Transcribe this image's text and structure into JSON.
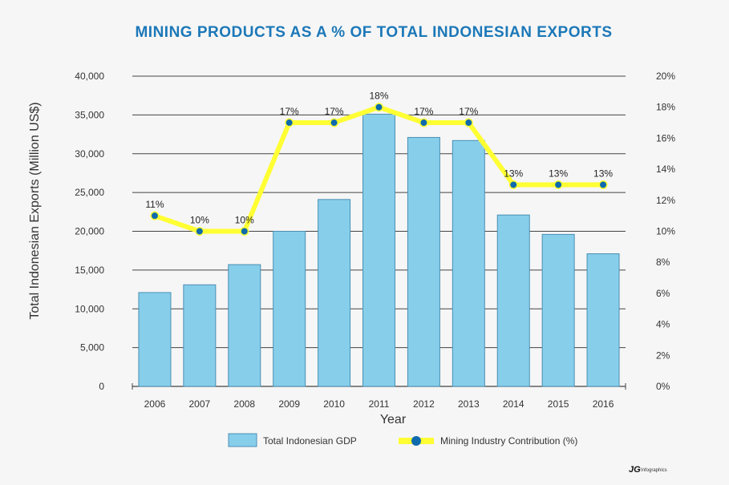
{
  "colors": {
    "title": "#1c78b8",
    "bar_fill": "#87ceeb",
    "bar_stroke": "#4a8fb3",
    "line": "#ffff33",
    "marker": "#0d6aad",
    "grid": "#444444",
    "background": "#f6f6f6"
  },
  "chart_data": {
    "type": "bar",
    "title": "MINING PRODUCTS AS A % OF TOTAL INDONESIAN EXPORTS",
    "xlabel": "Year",
    "ylabel": "Total Indonesian Exports (Million US$)",
    "categories": [
      "2006",
      "2007",
      "2008",
      "2009",
      "2010",
      "2011",
      "2012",
      "2013",
      "2014",
      "2015",
      "2016"
    ],
    "ylim": [
      0,
      40000
    ],
    "y_ticks": [
      "0",
      "5,000",
      "10,000",
      "15,000",
      "20,000",
      "25,000",
      "30,000",
      "35,000",
      "40,000"
    ],
    "y2lim": [
      0,
      20
    ],
    "y2_ticks": [
      "0%",
      "2%",
      "4%",
      "6%",
      "8%",
      "10%",
      "12%",
      "14%",
      "16%",
      "18%",
      "20%"
    ],
    "grid": "horizontal",
    "legend_position": "bottom",
    "series": [
      {
        "name": "Total Indonesian GDP",
        "type": "bar",
        "axis": "left",
        "values": [
          12100,
          13100,
          15700,
          20000,
          24100,
          35100,
          32100,
          31700,
          22100,
          19600,
          17100
        ]
      },
      {
        "name": "Mining Industry Contribution (%)",
        "type": "line",
        "axis": "right",
        "values": [
          11,
          10,
          10,
          17,
          17,
          18,
          17,
          17,
          13,
          13,
          13
        ],
        "data_labels": [
          "11%",
          "10%",
          "10%",
          "17%",
          "17%",
          "18%",
          "17%",
          "17%",
          "13%",
          "13%",
          "13%"
        ]
      }
    ]
  },
  "branding": {
    "logo_text": "JG",
    "sub_text": "Infographics"
  }
}
